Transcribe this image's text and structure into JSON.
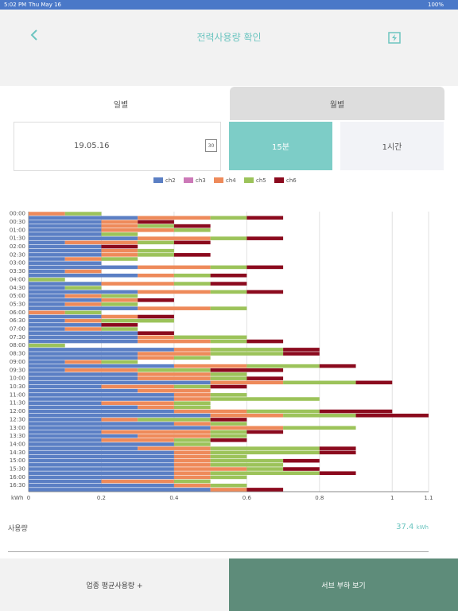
{
  "status_bar": {
    "time": "5:02 PM",
    "date": "Thu May 16",
    "battery": "100%"
  },
  "header": {
    "title": "전력사용량 확인"
  },
  "tabs": [
    "일별",
    "월별"
  ],
  "date_picker": {
    "date": "19.05.16",
    "icon_day": "30"
  },
  "intervals": [
    "15분",
    "1시간"
  ],
  "usage": {
    "label": "사용량",
    "value": "37.4",
    "unit": "kWh"
  },
  "buttons": [
    "업종 평균사용량 +",
    "서브 부하 보기"
  ],
  "chart_data": {
    "type": "bar",
    "orientation": "horizontal",
    "stacked": true,
    "x_label": "kWh",
    "categories": [
      "00:00",
      null,
      "00:30",
      null,
      "01:00",
      null,
      "01:30",
      null,
      "02:00",
      null,
      "02:30",
      null,
      "03:00",
      null,
      "03:30",
      null,
      "04:00",
      null,
      "04:30",
      null,
      "05:00",
      null,
      "05:30",
      null,
      "06:00",
      null,
      "06:30",
      null,
      "07:00",
      null,
      "07:30",
      null,
      "08:00",
      null,
      "08:30",
      null,
      "09:00",
      null,
      "09:30",
      null,
      "10:00",
      null,
      "10:30",
      null,
      "11:00",
      null,
      "11:30",
      null,
      "12:00",
      null,
      "12:30",
      null,
      "13:00",
      null,
      "13:30",
      null,
      "14:00",
      null,
      "14:30",
      null,
      "15:00",
      null,
      "15:30",
      null,
      "16:00",
      null,
      "16:30",
      null
    ],
    "series": [
      {
        "name": "ch2",
        "color": "#5b7fc4",
        "values": [
          0,
          0.3,
          0.2,
          0.2,
          0.2,
          0.2,
          0.3,
          0.1,
          0.2,
          0.2,
          0.2,
          0.1,
          0.2,
          0.3,
          0.1,
          0.3,
          0,
          0.2,
          0.1,
          0.3,
          0.1,
          0.2,
          0.1,
          0.3,
          0,
          0.2,
          0.1,
          0.2,
          0.1,
          0.3,
          0.3,
          0.3,
          0,
          0.4,
          0.3,
          0.3,
          0.1,
          0.4,
          0.1,
          0.3,
          0.3,
          0.5,
          0.2,
          0.3,
          0.4,
          0.4,
          0.2,
          0.3,
          0.4,
          0.5,
          0.2,
          0.4,
          0.5,
          0.2,
          0.3,
          0.2,
          0.4,
          0.3,
          0.4,
          0.4,
          0.4,
          0.4,
          0.4,
          0.4,
          0.4,
          0.2,
          0.4,
          0.5
        ]
      },
      {
        "name": "ch3",
        "color": "#cc79b8",
        "values": [
          0,
          0,
          0,
          0,
          0,
          0,
          0,
          0,
          0,
          0,
          0,
          0,
          0,
          0,
          0,
          0,
          0,
          0,
          0,
          0,
          0,
          0,
          0,
          0,
          0,
          0,
          0,
          0,
          0,
          0,
          0,
          0,
          0,
          0,
          0,
          0,
          0,
          0,
          0,
          0,
          0,
          0,
          0,
          0,
          0,
          0,
          0,
          0,
          0,
          0,
          0,
          0,
          0,
          0,
          0,
          0,
          0,
          0,
          0,
          0,
          0,
          0,
          0,
          0,
          0,
          0,
          0,
          0
        ]
      },
      {
        "name": "ch4",
        "color": "#ee8a5a",
        "values": [
          0.1,
          0.2,
          0.1,
          0.1,
          0.2,
          0,
          0.2,
          0.2,
          0,
          0.1,
          0.1,
          0.1,
          0,
          0.2,
          0.1,
          0.1,
          0,
          0.2,
          0,
          0.2,
          0.1,
          0.1,
          0.1,
          0.2,
          0.1,
          0.1,
          0.1,
          0,
          0.1,
          0,
          0.1,
          0.2,
          0,
          0.1,
          0.2,
          0.1,
          0.1,
          0.2,
          0.2,
          0.2,
          0.2,
          0.2,
          0.2,
          0.2,
          0.1,
          0.1,
          0.2,
          0.1,
          0.2,
          0.2,
          0.1,
          0.1,
          0.2,
          0.3,
          0.2,
          0.2,
          0,
          0.2,
          0.1,
          0.1,
          0.1,
          0.1,
          0.2,
          0.1,
          0.1,
          0.2,
          0.1,
          0.1
        ]
      },
      {
        "name": "ch5",
        "color": "#9cc35a",
        "values": [
          0.1,
          0.1,
          0,
          0.1,
          0.1,
          0.1,
          0.1,
          0.1,
          0,
          0.1,
          0.1,
          0.1,
          0,
          0.1,
          0,
          0.1,
          0.1,
          0.1,
          0.1,
          0.1,
          0.1,
          0,
          0.1,
          0.1,
          0.1,
          0,
          0.2,
          0,
          0.1,
          0,
          0.2,
          0.1,
          0.1,
          0.2,
          0.2,
          0.1,
          0.1,
          0.2,
          0.2,
          0.1,
          0.1,
          0.2,
          0.1,
          0,
          0.1,
          0.3,
          0.1,
          0.1,
          0.2,
          0.2,
          0.2,
          0.1,
          0.2,
          0.1,
          0.1,
          0.1,
          0.1,
          0.3,
          0.3,
          0.1,
          0.2,
          0.2,
          0.1,
          0.3,
          0.1,
          0.1,
          0.1,
          0
        ]
      },
      {
        "name": "ch6",
        "color": "#8b0a1e",
        "values": [
          0,
          0.1,
          0.1,
          0.1,
          0,
          0,
          0.1,
          0.1,
          0.1,
          0,
          0.1,
          0,
          0,
          0.1,
          0,
          0.1,
          0,
          0.1,
          0,
          0.1,
          0,
          0.1,
          0,
          0,
          0,
          0.1,
          0,
          0.1,
          0,
          0.1,
          0,
          0.1,
          0,
          0.1,
          0.1,
          0,
          0,
          0.1,
          0.2,
          0,
          0.1,
          0.1,
          0.1,
          0,
          0,
          0,
          0,
          0,
          0.2,
          0.2,
          0.1,
          0,
          0,
          0.1,
          0,
          0.1,
          0,
          0.1,
          0.1,
          0,
          0.1,
          0,
          0.1,
          0.1,
          0,
          0,
          0,
          0.1
        ]
      }
    ],
    "xlim": [
      0,
      1.1
    ],
    "xticks": [
      0,
      0.2,
      0.4,
      0.6,
      0.8,
      1,
      1.1
    ],
    "grid": true,
    "legend": "top"
  }
}
